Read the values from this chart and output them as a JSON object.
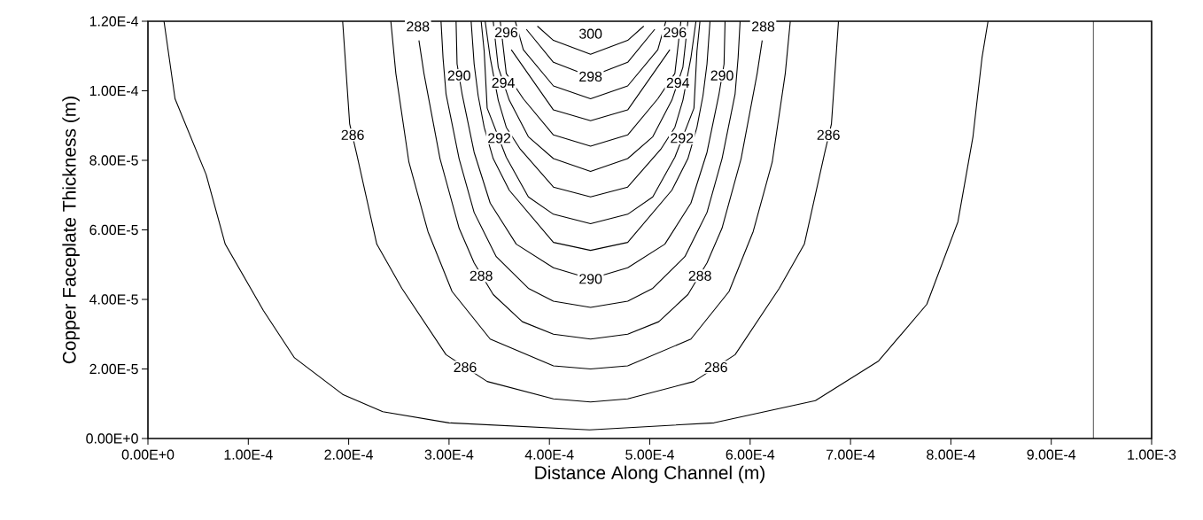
{
  "chart_data": {
    "type": "line",
    "xlabel": "Distance Along Channel (m)",
    "ylabel": "Copper Faceplate Thickness (m)",
    "xlim": [
      0,
      0.001
    ],
    "ylim": [
      0,
      0.00012
    ],
    "xticks": [
      {
        "value": 0,
        "label": "0.00E+0"
      },
      {
        "value": 0.0001,
        "label": "1.00E-4"
      },
      {
        "value": 0.0002,
        "label": "2.00E-4"
      },
      {
        "value": 0.0003,
        "label": "3.00E-4"
      },
      {
        "value": 0.0004,
        "label": "4.00E-4"
      },
      {
        "value": 0.0005,
        "label": "5.00E-4"
      },
      {
        "value": 0.0006,
        "label": "6.00E-4"
      },
      {
        "value": 0.0007,
        "label": "7.00E-4"
      },
      {
        "value": 0.0008,
        "label": "8.00E-4"
      },
      {
        "value": 0.0009,
        "label": "9.00E-4"
      },
      {
        "value": 0.001,
        "label": "1.00E-3"
      }
    ],
    "yticks": [
      {
        "value": 0,
        "label": "0.00E+0"
      },
      {
        "value": 2e-05,
        "label": "2.00E-5"
      },
      {
        "value": 4e-05,
        "label": "4.00E-5"
      },
      {
        "value": 6e-05,
        "label": "6.00E-5"
      },
      {
        "value": 8e-05,
        "label": "8.00E-5"
      },
      {
        "value": 0.0001,
        "label": "1.00E-4"
      },
      {
        "value": 0.00012,
        "label": "1.20E-4"
      }
    ],
    "series": [
      {
        "color": "#000000",
        "x": [
          1.6e-05,
          2.7e-05,
          5.8e-05,
          7.7e-05,
          0.000115,
          0.000146,
          0.000194,
          0.000234,
          0.0003,
          0.00044,
          0.000564,
          0.000665,
          0.000728,
          0.000776,
          0.000807,
          0.000822,
          0.000831,
          0.000837
        ],
        "values": [
          0.00012,
          9.77e-05,
          7.59e-05,
          5.59e-05,
          3.68e-05,
          2.32e-05,
          1.27e-05,
          7.7e-06,
          4.5e-06,
          2.5e-06,
          4.5e-06,
          1.09e-05,
          2.23e-05,
          3.86e-05,
          6.23e-05,
          8.68e-05,
          0.0001095,
          0.00012
        ]
      },
      {
        "color": "#000000",
        "x": [
          0.000194,
          0.000201,
          0.000208,
          0.000228,
          0.000253,
          0.000297,
          0.000338,
          0.000404,
          0.000441,
          0.000478,
          0.000544,
          0.000585,
          0.000629,
          0.000654,
          0.000674,
          0.000681,
          0.000688
        ],
        "values": [
          0.00012,
          9.05e-05,
          8.18e-05,
          5.59e-05,
          4.32e-05,
          2.41e-05,
          1.64e-05,
          1.14e-05,
          1.05e-05,
          1.14e-05,
          1.64e-05,
          2.41e-05,
          4.32e-05,
          5.59e-05,
          8.18e-05,
          9.05e-05,
          0.00012
        ]
      },
      {
        "color": "#000000",
        "x": [
          0.000242,
          0.000247,
          0.00026,
          0.000279,
          0.000303,
          0.000341,
          0.000404,
          0.000441,
          0.000478,
          0.000541,
          0.000579,
          0.000603,
          0.000622,
          0.000635,
          0.00064
        ],
        "values": [
          0.00012,
          0.000105,
          7.95e-05,
          5.95e-05,
          4.23e-05,
          2.86e-05,
          2.09e-05,
          2e-05,
          2.09e-05,
          2.86e-05,
          4.23e-05,
          5.95e-05,
          7.95e-05,
          0.000105,
          0.00012
        ]
      },
      {
        "color": "#000000",
        "x": [
          0.00027,
          0.000275,
          0.000291,
          0.00031,
          0.000325,
          0.000344,
          0.000373,
          0.000404,
          0.000441,
          0.000478,
          0.000509,
          0.000538,
          0.000557,
          0.000572,
          0.000591,
          0.000607,
          0.000612
        ],
        "values": [
          0.0001145,
          0.000105,
          8.05e-05,
          6.05e-05,
          5.05e-05,
          4.14e-05,
          3.36e-05,
          3e-05,
          2.86e-05,
          3e-05,
          3.36e-05,
          4.14e-05,
          5.05e-05,
          6.05e-05,
          8.05e-05,
          0.000105,
          0.0001145
        ]
      },
      {
        "color": "#000000",
        "x": [
          0.000292,
          0.000294,
          0.000297,
          0.00031,
          0.000325,
          0.000347,
          0.000379,
          0.000404,
          0.000441,
          0.000478,
          0.000503,
          0.000535,
          0.000557,
          0.000572,
          0.000585,
          0.000588,
          0.00059
        ],
        "values": [
          0.00012,
          0.0001095,
          9.91e-05,
          8.05e-05,
          6.5e-05,
          5.23e-05,
          4.32e-05,
          3.95e-05,
          3.77e-05,
          3.95e-05,
          4.32e-05,
          5.23e-05,
          6.5e-05,
          8.05e-05,
          9.91e-05,
          0.0001095,
          0.00012
        ]
      },
      {
        "color": "#000000",
        "x": [
          0.000307,
          0.000308,
          0.000313,
          0.000325,
          0.000341,
          0.000367,
          0.000404,
          0.000441,
          0.000478,
          0.000515,
          0.000541,
          0.000557,
          0.000569,
          0.000574,
          0.000575
        ],
        "values": [
          0.00012,
          0.0001077,
          9.91e-05,
          8.23e-05,
          6.77e-05,
          5.59e-05,
          4.91e-05,
          4.59e-05,
          4.91e-05,
          5.59e-05,
          6.77e-05,
          8.23e-05,
          9.91e-05,
          0.0001077,
          0.00012
        ]
      },
      {
        "color": "#000000",
        "x": [
          0.000322,
          0.000325,
          0.000329,
          0.000335,
          0.000344,
          0.00036,
          0.000404,
          0.000441,
          0.000478,
          0.000522,
          0.000538,
          0.000547,
          0.000553,
          0.000557,
          0.00056
        ],
        "values": [
          0.00012,
          0.0001077,
          9.86e-05,
          8.95e-05,
          8.05e-05,
          7.14e-05,
          5.64e-05,
          5.41e-05,
          5.64e-05,
          7.14e-05,
          8.05e-05,
          8.95e-05,
          9.86e-05,
          0.0001077,
          0.00012
        ]
      },
      {
        "color": "#000000",
        "x": [
          0.000332,
          0.000335,
          0.000338,
          0.000357,
          0.000379,
          0.000404,
          0.000441,
          0.000478,
          0.000503,
          0.000525,
          0.000544,
          0.000547,
          0.00055
        ],
        "values": [
          0.00012,
          0.0001114,
          9.5e-05,
          8.09e-05,
          6.95e-05,
          6.45e-05,
          6.18e-05,
          6.45e-05,
          6.95e-05,
          8.09e-05,
          9.5e-05,
          0.0001114,
          0.00012
        ]
      },
      {
        "color": "#000000",
        "x": [
          0.000336,
          0.000341,
          0.000349,
          0.000357,
          0.000371,
          0.000404,
          0.000441,
          0.000478,
          0.000511,
          0.000525,
          0.000533,
          0.000541,
          0.000546
        ],
        "values": [
          0.00012,
          0.0001095,
          9.73e-05,
          8.95e-05,
          8.32e-05,
          7.23e-05,
          6.95e-05,
          7.23e-05,
          8.32e-05,
          8.95e-05,
          9.73e-05,
          0.0001095,
          0.00012
        ]
      },
      {
        "color": "#000000",
        "x": [
          0.000344,
          0.000349,
          0.00036,
          0.000379,
          0.000404,
          0.000441,
          0.000478,
          0.000503,
          0.000522,
          0.000533,
          0.000538
        ],
        "values": [
          0.00012,
          0.0001068,
          9.73e-05,
          8.68e-05,
          8.05e-05,
          7.68e-05,
          8.05e-05,
          8.68e-05,
          9.73e-05,
          0.0001068,
          0.00012
        ]
      },
      {
        "color": "#000000",
        "x": [
          0.000351,
          0.000357,
          0.000374,
          0.000404,
          0.000441,
          0.000478,
          0.000508,
          0.000525,
          0.000531
        ],
        "values": [
          0.00012,
          0.000105,
          9.77e-05,
          8.73e-05,
          8.41e-05,
          8.73e-05,
          9.77e-05,
          0.000105,
          0.00012
        ]
      },
      {
        "color": "#000000",
        "x": [
          0.000362,
          0.000404,
          0.000441,
          0.000478,
          0.00052
        ],
        "values": [
          0.0001118,
          9.45e-05,
          9.14e-05,
          9.45e-05,
          0.0001118
        ]
      },
      {
        "color": "#000000",
        "x": [
          0.000366,
          0.000374,
          0.000404,
          0.000441,
          0.000478,
          0.000508,
          0.000516
        ],
        "values": [
          0.00012,
          0.0001118,
          0.0001014,
          9.77e-05,
          0.0001014,
          0.0001118,
          0.00012
        ]
      },
      {
        "color": "#000000",
        "x": [
          0.000377,
          0.000404,
          0.000441,
          0.000478,
          0.000505
        ],
        "values": [
          0.0001177,
          0.0001082,
          0.0001041,
          0.0001082,
          0.0001177
        ]
      },
      {
        "color": "#000000",
        "x": [
          0.000388,
          0.000404,
          0.000441,
          0.000478,
          0.000494
        ],
        "values": [
          0.0001186,
          0.0001145,
          0.0001105,
          0.0001145,
          0.0001186
        ]
      }
    ],
    "ref_lines": [
      {
        "axis": "x",
        "value": 0.000942,
        "color": "#000000"
      }
    ],
    "annotations": [
      {
        "text": "286",
        "x": 0.000204,
        "y": 8.73e-05
      },
      {
        "text": "286",
        "x": 0.000678,
        "y": 8.73e-05
      },
      {
        "text": "286",
        "x": 0.000316,
        "y": 2.05e-05
      },
      {
        "text": "286",
        "x": 0.000566,
        "y": 2.05e-05
      },
      {
        "text": "288",
        "x": 0.000269,
        "y": 0.0001185
      },
      {
        "text": "288",
        "x": 0.000613,
        "y": 0.0001185
      },
      {
        "text": "288",
        "x": 0.000332,
        "y": 4.68e-05
      },
      {
        "text": "288",
        "x": 0.00055,
        "y": 4.68e-05
      },
      {
        "text": "290",
        "x": 0.00031,
        "y": 0.0001044
      },
      {
        "text": "290",
        "x": 0.000572,
        "y": 0.0001044
      },
      {
        "text": "290",
        "x": 0.000441,
        "y": 4.59e-05
      },
      {
        "text": "292",
        "x": 0.00035,
        "y": 8.64e-05
      },
      {
        "text": "292",
        "x": 0.000532,
        "y": 8.64e-05
      },
      {
        "text": "294",
        "x": 0.000354,
        "y": 0.0001023
      },
      {
        "text": "294",
        "x": 0.000528,
        "y": 0.0001023
      },
      {
        "text": "296",
        "x": 0.000357,
        "y": 0.0001168
      },
      {
        "text": "296",
        "x": 0.000525,
        "y": 0.0001168
      },
      {
        "text": "298",
        "x": 0.000441,
        "y": 0.0001041
      },
      {
        "text": "300",
        "x": 0.000441,
        "y": 0.0001164
      }
    ]
  }
}
